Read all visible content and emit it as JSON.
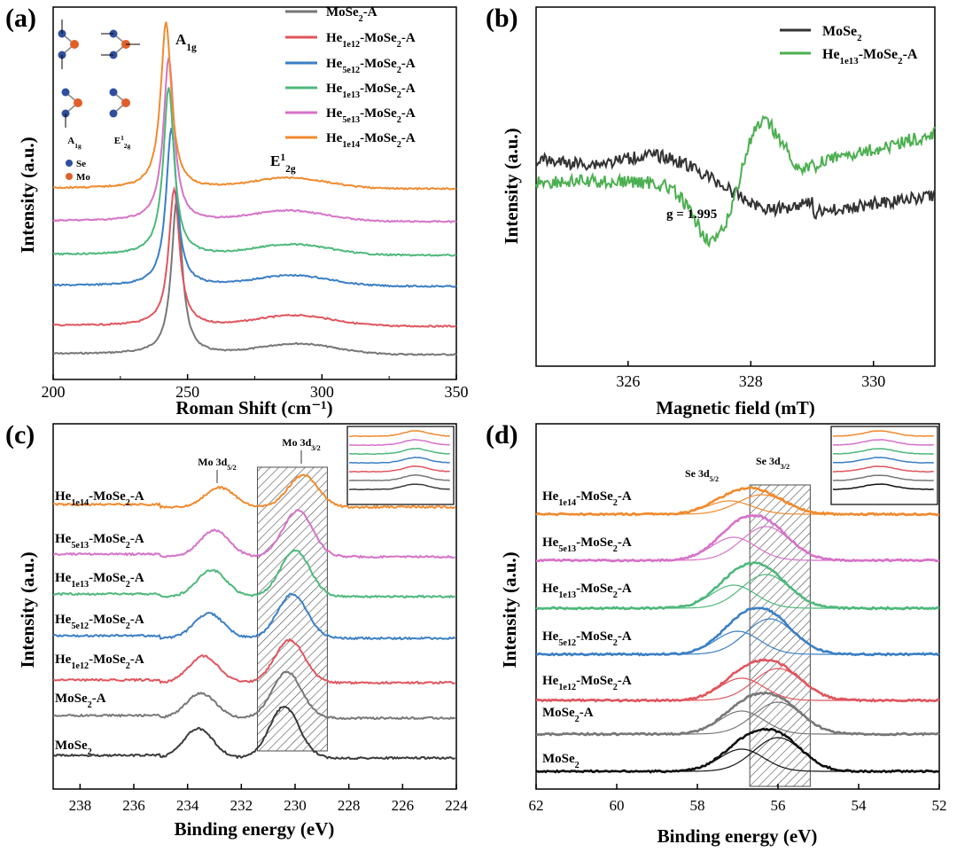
{
  "figure": {
    "panels": [
      {
        "id": "a",
        "label": "(a)"
      },
      {
        "id": "b",
        "label": "(b)"
      },
      {
        "id": "c",
        "label": "(c)"
      },
      {
        "id": "d",
        "label": "(d)"
      }
    ],
    "colors": {
      "MoSe2": "#3a3a3a",
      "MoSe2-A": "#777777",
      "He1e12": "#e0555e",
      "He5e12": "#3a7fc4",
      "He1e13": "#4db87a",
      "He5e13": "#d672c8",
      "He1e14": "#f08a2e",
      "EPR_MoSe2": "#333333",
      "EPR_He": "#4caf50"
    }
  },
  "chart_data": [
    {
      "panel": "a",
      "type": "line",
      "title": "",
      "xlabel": "Roman Shift (cm⁻¹)",
      "ylabel": "Intensity (a.u.)",
      "xlim": [
        200,
        350
      ],
      "xticks": [
        200,
        250,
        300,
        350
      ],
      "peak_labels": [
        {
          "text": "A1g",
          "x": 250
        },
        {
          "text": "E12g",
          "x": 290
        }
      ],
      "inset": {
        "legend": [
          {
            "text": "Se",
            "color": "#2f4f9e"
          },
          {
            "text": "Mo",
            "color": "#e0602a"
          }
        ],
        "modes": [
          "A1g",
          "E12g"
        ]
      },
      "series": [
        {
          "name": "MoSe2-A",
          "color": "#777777",
          "a1g_peak_x": 246,
          "e2g_peak_x": 291
        },
        {
          "name": "He1e12-MoSe2-A",
          "color": "#e0555e",
          "a1g_peak_x": 245,
          "e2g_peak_x": 290
        },
        {
          "name": "He5e12-MoSe2-A",
          "color": "#3a7fc4",
          "a1g_peak_x": 244,
          "e2g_peak_x": 289
        },
        {
          "name": "He1e13-MoSe2-A",
          "color": "#4db87a",
          "a1g_peak_x": 243,
          "e2g_peak_x": 289
        },
        {
          "name": "He5e13-MoSe2-A",
          "color": "#d672c8",
          "a1g_peak_x": 243,
          "e2g_peak_x": 288
        },
        {
          "name": "He1e14-MoSe2-A",
          "color": "#f08a2e",
          "a1g_peak_x": 242,
          "e2g_peak_x": 288
        }
      ],
      "legend": [
        "MoSe2-A",
        "He1e12-MoSe2-A",
        "He5e12-MoSe2-A",
        "He1e13-MoSe2-A",
        "He5e13-MoSe2-A",
        "He1e14-MoSe2-A"
      ]
    },
    {
      "panel": "b",
      "type": "line",
      "xlabel": "Magnetic field (mT)",
      "ylabel": "Intensity (a.u.)",
      "xlim": [
        324.5,
        331
      ],
      "xticks": [
        326,
        328,
        330
      ],
      "annotation": "g = 1.995",
      "series": [
        {
          "name": "MoSe2",
          "color": "#333333"
        },
        {
          "name": "He1e13-MoSe2-A",
          "color": "#4caf50"
        }
      ],
      "legend": [
        "MoSe2",
        "He1e13-MoSe2-A"
      ]
    },
    {
      "panel": "c",
      "type": "line",
      "xlabel": "Binding energy (eV)",
      "ylabel": "Intensity (a.u.)",
      "xlim": [
        239,
        224
      ],
      "xticks": [
        238,
        236,
        234,
        232,
        230,
        228,
        226,
        224
      ],
      "shaded_region": [
        231.4,
        228.8
      ],
      "peak_labels": [
        {
          "text": "Mo 3d5/2",
          "x": 233
        },
        {
          "text": "Mo 3d3/2",
          "x": 229.8
        }
      ],
      "series": [
        {
          "name": "MoSe2",
          "color": "#3a3a3a",
          "peaks": [
            233.6,
            230.4
          ]
        },
        {
          "name": "MoSe2-A",
          "color": "#777777",
          "peaks": [
            233.5,
            230.3
          ]
        },
        {
          "name": "He1e12-MoSe2-A",
          "color": "#e0555e",
          "peaks": [
            233.4,
            230.2
          ]
        },
        {
          "name": "He5e12-MoSe2-A",
          "color": "#3a7fc4",
          "peaks": [
            233.2,
            230.1
          ]
        },
        {
          "name": "He1e13-MoSe2-A",
          "color": "#4db87a",
          "peaks": [
            233.1,
            230.0
          ]
        },
        {
          "name": "He5e13-MoSe2-A",
          "color": "#d672c8",
          "peaks": [
            233.0,
            229.9
          ]
        },
        {
          "name": "He1e14-MoSe2-A",
          "color": "#f08a2e",
          "peaks": [
            232.8,
            229.7
          ]
        }
      ]
    },
    {
      "panel": "d",
      "type": "line",
      "xlabel": "Binding energy (eV)",
      "ylabel": "Intensity (a.u.)",
      "xlim": [
        62,
        52
      ],
      "xticks": [
        62,
        60,
        58,
        56,
        54,
        52
      ],
      "shaded_region": [
        56.7,
        55.2
      ],
      "peak_labels": [
        {
          "text": "Se 3d5/2",
          "x": 57.0
        },
        {
          "text": "Se 3d3/2",
          "x": 56.3
        }
      ],
      "series": [
        {
          "name": "MoSe2",
          "color": "#111111",
          "peaks": [
            56.9,
            56.0
          ]
        },
        {
          "name": "MoSe2-A",
          "color": "#777777",
          "peaks": [
            56.9,
            56.0
          ]
        },
        {
          "name": "He1e12-MoSe2-A",
          "color": "#e0555e",
          "peaks": [
            56.9,
            56.0
          ]
        },
        {
          "name": "He5e12-MoSe2-A",
          "color": "#3a7fc4",
          "peaks": [
            57.0,
            56.2
          ]
        },
        {
          "name": "He1e13-MoSe2-A",
          "color": "#4db87a",
          "peaks": [
            57.1,
            56.3
          ]
        },
        {
          "name": "He5e13-MoSe2-A",
          "color": "#d672c8",
          "peaks": [
            57.1,
            56.3
          ]
        },
        {
          "name": "He1e14-MoSe2-A",
          "color": "#f08a2e",
          "peaks": [
            57.2,
            56.4
          ]
        }
      ]
    }
  ]
}
